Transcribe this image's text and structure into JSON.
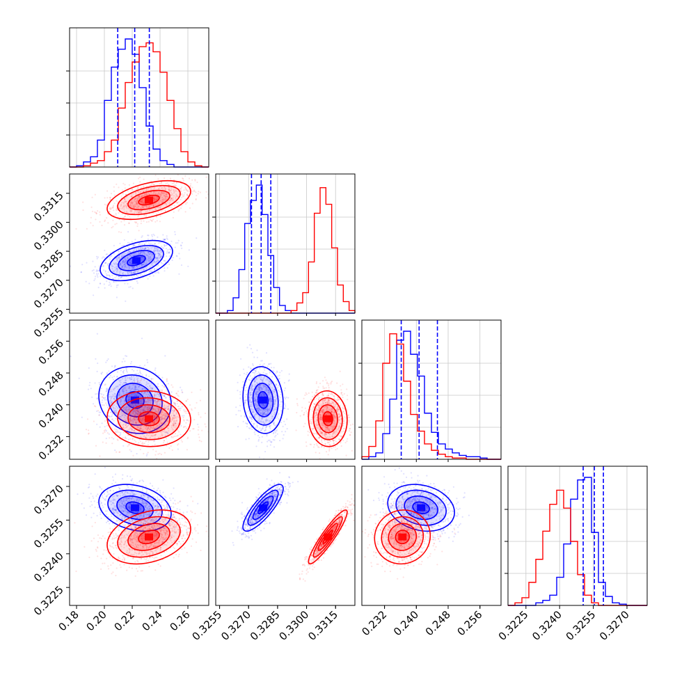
{
  "chart_data": {
    "type": "corner",
    "colors": {
      "blue": "#0000ff",
      "red": "#ff0000"
    },
    "params": [
      {
        "range": [
          0.175,
          0.275
        ],
        "ticks": [
          "0.18",
          "0.20",
          "0.22",
          "0.24",
          "0.26"
        ],
        "quantiles_blue": [
          0.2096,
          0.2218,
          0.2323
        ]
      },
      {
        "range": [
          0.3253,
          0.3325
        ],
        "ticks": [
          "0.3255",
          "0.3270",
          "0.3285",
          "0.3300",
          "0.3315"
        ],
        "quantiles_blue": [
          0.32715,
          0.32765,
          0.32815
        ]
      },
      {
        "range": [
          0.2263,
          0.2613
        ],
        "ticks": [
          "0.232",
          "0.240",
          "0.248",
          "0.256"
        ],
        "quantiles_blue": [
          0.2362,
          0.2407,
          0.2453
        ]
      },
      {
        "range": [
          0.3217,
          0.3279
        ],
        "ticks": [
          "0.3225",
          "0.3240",
          "0.3255",
          "0.3270"
        ],
        "quantiles_blue": [
          0.32505,
          0.32555,
          0.32595
        ]
      }
    ],
    "histograms": [
      {
        "bin_start": 0.175,
        "bin_width": 0.005,
        "blue": [
          0,
          0.01,
          0.04,
          0.08,
          0.21,
          0.52,
          0.78,
          0.92,
          1.0,
          0.88,
          0.62,
          0.32,
          0.14,
          0.05,
          0.02,
          0.0,
          0,
          0,
          0,
          0
        ],
        "red": [
          0,
          0,
          0.01,
          0.03,
          0.05,
          0.12,
          0.21,
          0.46,
          0.66,
          0.82,
          0.94,
          0.97,
          0.9,
          0.74,
          0.52,
          0.3,
          0.12,
          0.04,
          0.01,
          0
        ]
      },
      {
        "bin_start": 0.3253,
        "bin_width": 0.0003,
        "blue": [
          0,
          0,
          0.02,
          0.12,
          0.34,
          0.7,
          0.88,
          1.0,
          0.77,
          0.45,
          0.2,
          0.06,
          0.02,
          0,
          0,
          0,
          0,
          0,
          0,
          0,
          0,
          0,
          0,
          0
        ],
        "red": [
          0,
          0,
          0,
          0,
          0,
          0,
          0,
          0,
          0,
          0,
          0,
          0,
          0,
          0.02,
          0.08,
          0.16,
          0.4,
          0.78,
          0.98,
          0.85,
          0.51,
          0.22,
          0.09,
          0.02
        ]
      },
      {
        "bin_start": 0.2263,
        "bin_width": 0.00175,
        "blue": [
          0,
          0.02,
          0.05,
          0.2,
          0.47,
          0.93,
          1.0,
          0.82,
          0.65,
          0.36,
          0.21,
          0.12,
          0.08,
          0.05,
          0.03,
          0.02,
          0.02,
          0.01,
          0,
          0
        ],
        "red": [
          0.02,
          0.1,
          0.3,
          0.75,
          0.98,
          0.9,
          0.61,
          0.35,
          0.22,
          0.12,
          0.07,
          0.04,
          0.02,
          0.01,
          0.01,
          0,
          0,
          0,
          0,
          0
        ]
      },
      {
        "bin_start": 0.3217,
        "bin_width": 0.00031,
        "blue": [
          0,
          0,
          0,
          0,
          0.02,
          0.04,
          0.08,
          0.22,
          0.48,
          0.83,
          0.98,
          1.0,
          0.57,
          0.18,
          0.07,
          0.02,
          0.01,
          0,
          0,
          0
        ],
        "red": [
          0,
          0.02,
          0.06,
          0.18,
          0.36,
          0.58,
          0.79,
          0.9,
          0.76,
          0.5,
          0.24,
          0.08,
          0.02,
          0,
          0,
          0,
          0,
          0,
          0,
          0
        ]
      }
    ],
    "scatter_pairs": [
      {
        "x": 0,
        "y": 1,
        "blue": {
          "mean": [
            0.223,
            0.32802
          ],
          "sd": [
            0.013,
            0.00052
          ],
          "rho": 0.45
        },
        "red": {
          "mean": [
            0.232,
            0.33115
          ],
          "sd": [
            0.015,
            0.0005
          ],
          "rho": 0.45
        }
      },
      {
        "x": 0,
        "y": 2,
        "blue": {
          "mean": [
            0.222,
            0.2412
          ],
          "sd": [
            0.013,
            0.0042
          ],
          "rho": -0.12
        },
        "red": {
          "mean": [
            0.232,
            0.2365
          ],
          "sd": [
            0.015,
            0.0035
          ],
          "rho": -0.05
        }
      },
      {
        "x": 1,
        "y": 2,
        "blue": {
          "mean": [
            0.32775,
            0.2412
          ],
          "sd": [
            0.00052,
            0.0042
          ],
          "rho": -0.1
        },
        "red": {
          "mean": [
            0.3311,
            0.2365
          ],
          "sd": [
            0.0005,
            0.0035
          ],
          "rho": -0.05
        }
      },
      {
        "x": 0,
        "y": 3,
        "blue": {
          "mean": [
            0.222,
            0.32605
          ],
          "sd": [
            0.013,
            0.00052
          ],
          "rho": -0.25
        },
        "red": {
          "mean": [
            0.232,
            0.32475
          ],
          "sd": [
            0.015,
            0.0006
          ],
          "rho": 0.3
        }
      },
      {
        "x": 1,
        "y": 3,
        "blue": {
          "mean": [
            0.32775,
            0.32605
          ],
          "sd": [
            0.00052,
            0.00052
          ],
          "rho": 0.82
        },
        "red": {
          "mean": [
            0.3311,
            0.32475
          ],
          "sd": [
            0.0005,
            0.0006
          ],
          "rho": 0.92
        }
      },
      {
        "x": 2,
        "y": 3,
        "blue": {
          "mean": [
            0.2412,
            0.32605
          ],
          "sd": [
            0.0042,
            0.00052
          ],
          "rho": -0.2
        },
        "red": {
          "mean": [
            0.2365,
            0.32475
          ],
          "sd": [
            0.0035,
            0.0006
          ],
          "rho": 0.05
        }
      }
    ],
    "contour_levels_sigma": [
      0.5,
      1.0,
      1.5,
      2.0
    ],
    "grid": true
  }
}
